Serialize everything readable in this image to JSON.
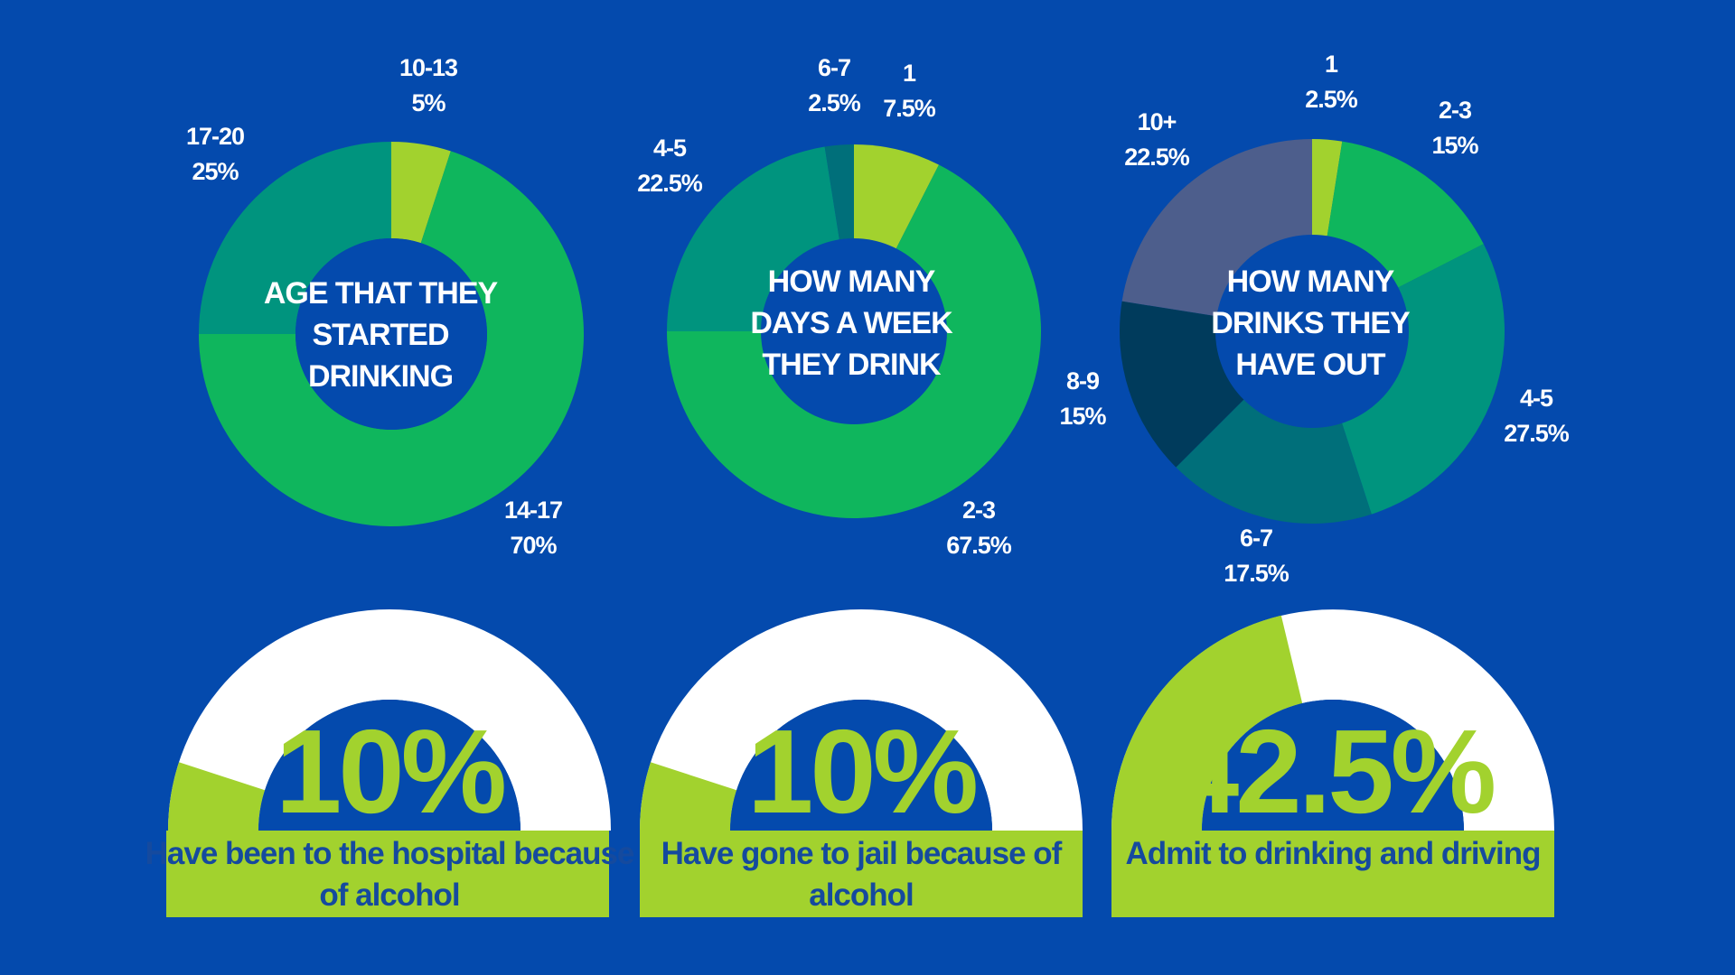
{
  "colors": {
    "background": "#044aad",
    "lime": "#a2d22e",
    "green": "#0fb65d",
    "teal": "#00947e",
    "dark_teal": "#006f7a",
    "navy": "#003b5c",
    "slate": "#4d5e8c",
    "white": "#ffffff",
    "caption_text": "#154a9e"
  },
  "chart_data": [
    {
      "type": "pie",
      "center_label": [
        "AGE THAT THEY",
        "STARTED",
        "DRINKING"
      ],
      "slices": [
        {
          "category": "10-13",
          "value": 5,
          "display": "5%",
          "color": "#a2d22e"
        },
        {
          "category": "14-17",
          "value": 70,
          "display": "70%",
          "color": "#0fb65d"
        },
        {
          "category": "17-20",
          "value": 25,
          "display": "25%",
          "color": "#00947e"
        }
      ]
    },
    {
      "type": "pie",
      "center_label": [
        "HOW MANY",
        "DAYS A WEEK",
        "THEY DRINK"
      ],
      "slices": [
        {
          "category": "1",
          "value": 7.5,
          "display": "7.5%",
          "color": "#a2d22e"
        },
        {
          "category": "2-3",
          "value": 67.5,
          "display": "67.5%",
          "color": "#0fb65d"
        },
        {
          "category": "4-5",
          "value": 22.5,
          "display": "22.5%",
          "color": "#00947e"
        },
        {
          "category": "6-7",
          "value": 2.5,
          "display": "2.5%",
          "color": "#006f7a"
        }
      ]
    },
    {
      "type": "pie",
      "center_label": [
        "HOW MANY",
        "DRINKS THEY",
        "HAVE OUT"
      ],
      "slices": [
        {
          "category": "1",
          "value": 2.5,
          "display": "2.5%",
          "color": "#a2d22e"
        },
        {
          "category": "2-3",
          "value": 15,
          "display": "15%",
          "color": "#0fb65d"
        },
        {
          "category": "4-5",
          "value": 27.5,
          "display": "27.5%",
          "color": "#00947e"
        },
        {
          "category": "6-7",
          "value": 17.5,
          "display": "17.5%",
          "color": "#006f7a"
        },
        {
          "category": "8-9",
          "value": 15,
          "display": "15%",
          "color": "#003b5c"
        },
        {
          "category": "10+",
          "value": 22.5,
          "display": "22.5%",
          "color": "#4d5e8c"
        }
      ]
    },
    {
      "type": "gauge",
      "value": 10,
      "value_label": "10%",
      "caption": [
        "Have been to the hospital because",
        "of alcohol"
      ],
      "fill_color": "#a2d22e",
      "track_color": "#ffffff"
    },
    {
      "type": "gauge",
      "value": 10,
      "value_label": "10%",
      "caption": [
        "Have gone to jail because of",
        "alcohol"
      ],
      "fill_color": "#a2d22e",
      "track_color": "#ffffff"
    },
    {
      "type": "gauge",
      "value": 42.5,
      "value_label": "42.5%",
      "caption": [
        "Admit to drinking and driving"
      ],
      "fill_color": "#a2d22e",
      "track_color": "#ffffff"
    }
  ]
}
